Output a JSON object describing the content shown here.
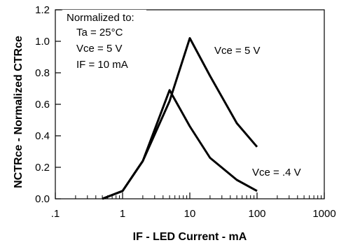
{
  "chart_data": {
    "type": "line",
    "xscale": "log",
    "xlim": [
      0.1,
      1000
    ],
    "ylim": [
      0,
      1.2
    ],
    "xticks": [
      ".1",
      "1",
      "10",
      "100",
      "1000"
    ],
    "yticks": [
      "0.0",
      "0.2",
      "0.4",
      "0.6",
      "0.8",
      "1.0",
      "1.2"
    ],
    "xlabel": "IF - LED Current - mA",
    "ylabel": "NCTRce - Normalized CTRce",
    "grid": false,
    "series": [
      {
        "name": "Vce = 5 V",
        "x": [
          0.5,
          1,
          2,
          5,
          10,
          20,
          50,
          100
        ],
        "y": [
          0.0,
          0.05,
          0.24,
          0.62,
          1.02,
          0.78,
          0.48,
          0.33
        ]
      },
      {
        "name": "Vce = .4 V",
        "x": [
          0.5,
          1,
          2,
          5,
          10,
          20,
          50,
          100
        ],
        "y": [
          0.0,
          0.05,
          0.24,
          0.69,
          0.46,
          0.26,
          0.12,
          0.05
        ]
      }
    ],
    "legend": {
      "title": "Normalized to:",
      "lines": [
        "Ta = 25°C",
        "Vce = 5 V",
        "IF = 10 mA"
      ]
    }
  }
}
